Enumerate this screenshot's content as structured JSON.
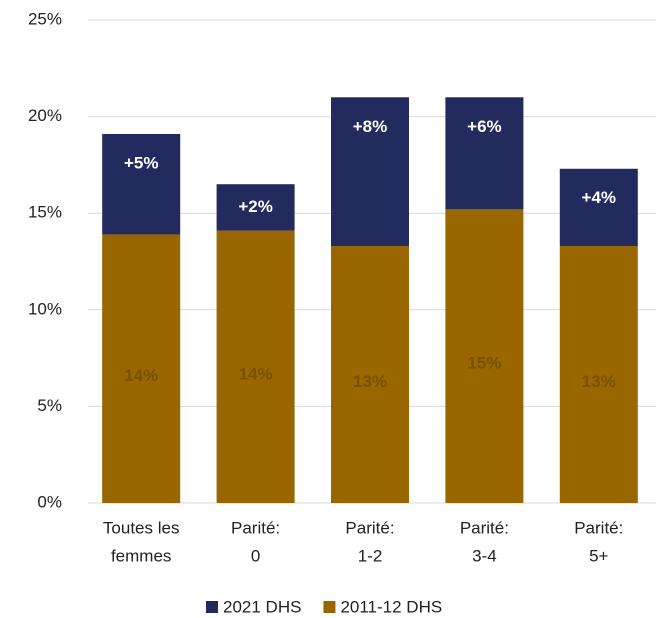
{
  "chart_data": {
    "type": "stacked-bar",
    "categories": [
      [
        "Toutes les",
        "femmes"
      ],
      [
        "Parité:",
        "0"
      ],
      [
        "Parité:",
        "1-2"
      ],
      [
        "Parité:",
        "3-4"
      ],
      [
        "Parité:",
        "5+"
      ]
    ],
    "series": [
      {
        "name": "2011-12 DHS",
        "color": "#996600",
        "values": [
          13.9,
          14.1,
          13.3,
          15.2,
          13.3
        ],
        "value_labels": [
          "14%",
          "14%",
          "13%",
          "15%",
          "13%"
        ]
      },
      {
        "name": "2021 DHS",
        "color": "#232a5e",
        "values": [
          5.2,
          2.4,
          7.7,
          5.8,
          4.0
        ],
        "value_labels": [
          "+5%",
          "+2%",
          "+8%",
          "+6%",
          "+4%"
        ]
      }
    ],
    "legend_order": [
      "2021 DHS",
      "2011-12 DHS"
    ],
    "ylim": [
      0,
      25
    ],
    "yticks": [
      {
        "value": 0,
        "label": "0%"
      },
      {
        "value": 5,
        "label": "5%"
      },
      {
        "value": 10,
        "label": "10%"
      },
      {
        "value": 15,
        "label": "15%"
      },
      {
        "value": 20,
        "label": "20%"
      },
      {
        "value": 25,
        "label": "25%"
      }
    ],
    "grid": true,
    "legend": "bottom"
  }
}
